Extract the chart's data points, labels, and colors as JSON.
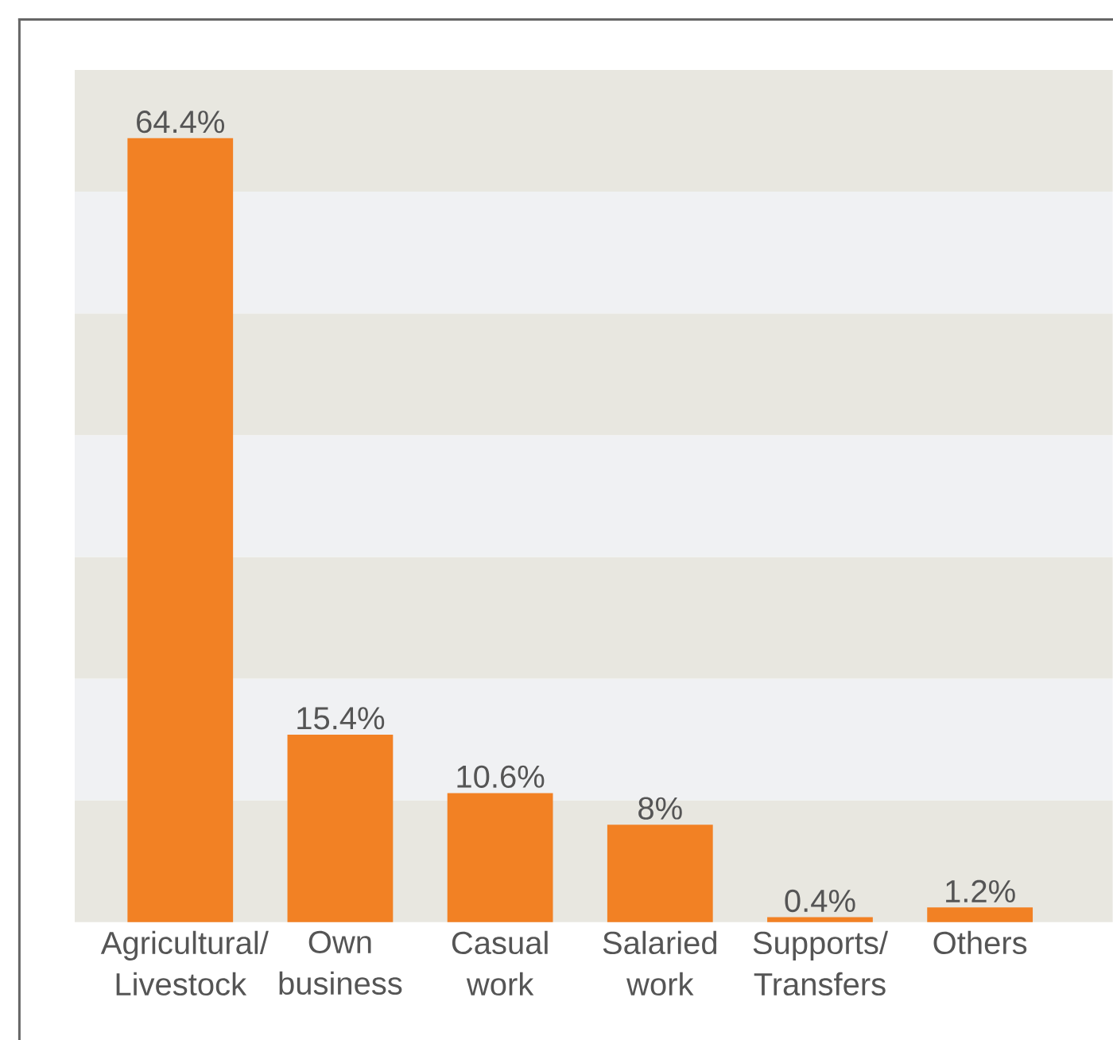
{
  "chart_data": {
    "type": "bar",
    "categories": [
      "Agricultural/ Livestock",
      "Own business",
      "Casual work",
      "Salaried work",
      "Supports/ Transfers",
      "Others"
    ],
    "values": [
      64.4,
      15.4,
      10.6,
      8,
      0.4,
      1.2
    ],
    "value_labels": [
      "64.4%",
      "15.4%",
      "10.6%",
      "8%",
      "0.4%",
      "1.2%"
    ],
    "color": "#f28124",
    "ylim": [
      0,
      70
    ],
    "tick_labels": "x",
    "bands": [
      {
        "axis": "y",
        "from": 0,
        "to": 10,
        "color": "#e8e7e0"
      },
      {
        "axis": "y",
        "from": 10,
        "to": 20,
        "color": "#f0f1f3"
      },
      {
        "axis": "y",
        "from": 20,
        "to": 30,
        "color": "#e8e7e0"
      },
      {
        "axis": "y",
        "from": 30,
        "to": 40,
        "color": "#f0f1f3"
      },
      {
        "axis": "y",
        "from": 40,
        "to": 50,
        "color": "#e8e7e0"
      },
      {
        "axis": "y",
        "from": 50,
        "to": 60,
        "color": "#f0f1f3"
      },
      {
        "axis": "y",
        "from": 60,
        "to": 70,
        "color": "#e8e7e0"
      }
    ]
  }
}
